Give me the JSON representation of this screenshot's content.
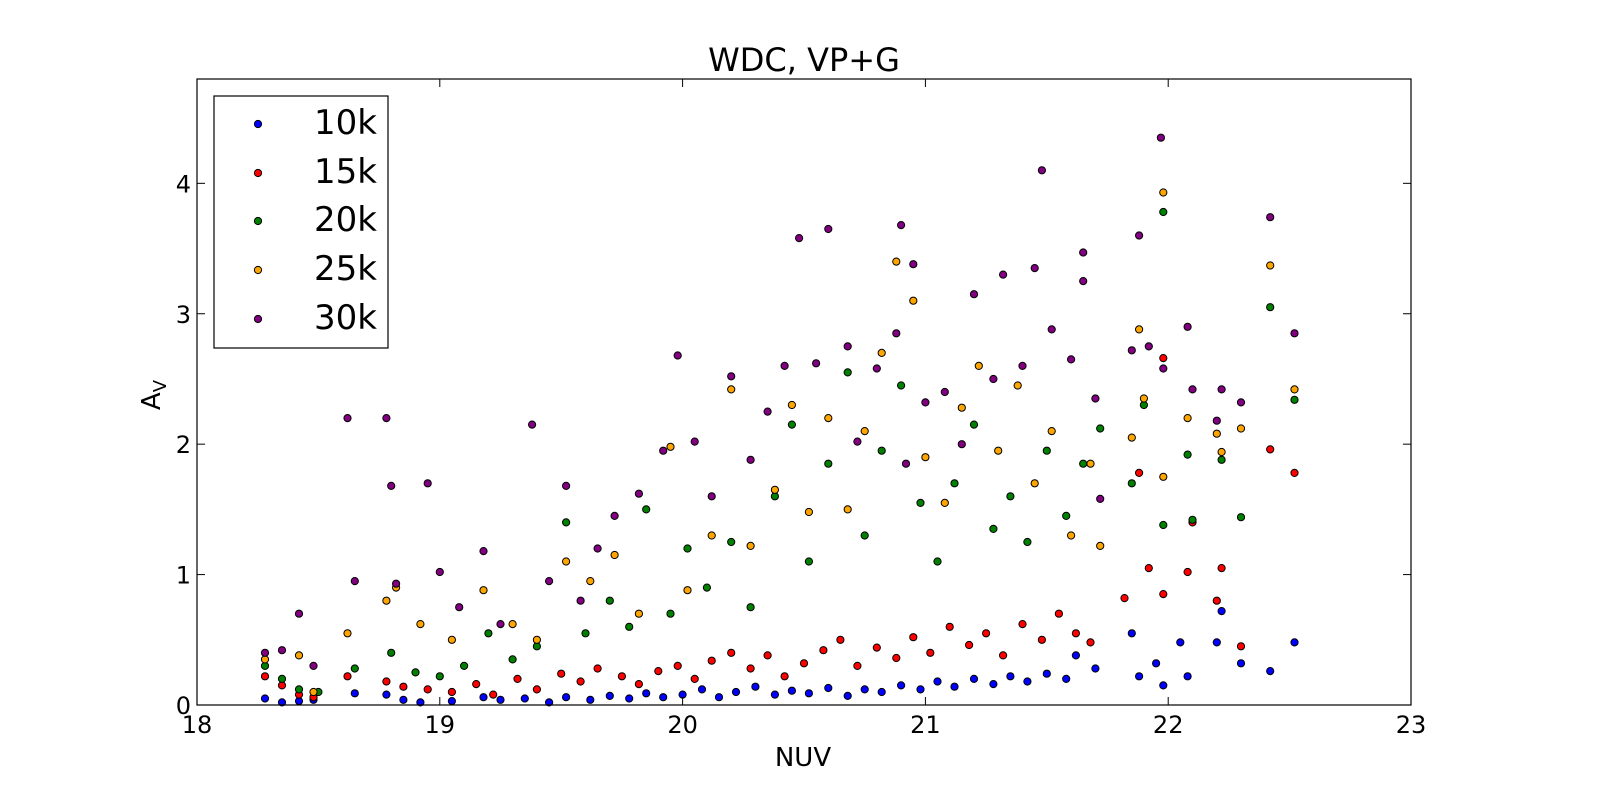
{
  "chart_data": {
    "type": "scatter",
    "title": "WDC, VP+G",
    "xlabel": "NUV",
    "ylabel": "A",
    "ylabel_sub": "V",
    "xlim": [
      18,
      23
    ],
    "ylim": [
      0,
      4.8
    ],
    "xticks": [
      "18",
      "19",
      "20",
      "21",
      "22",
      "23"
    ],
    "yticks": [
      "0",
      "1",
      "2",
      "3",
      "4"
    ],
    "grid": false,
    "legend_position": "top-left",
    "series": [
      {
        "name": "10k",
        "color": "#0000ff",
        "points": [
          [
            18.28,
            0.05
          ],
          [
            18.35,
            0.02
          ],
          [
            18.42,
            0.03
          ],
          [
            18.48,
            0.04
          ],
          [
            18.65,
            0.09
          ],
          [
            18.78,
            0.08
          ],
          [
            18.85,
            0.04
          ],
          [
            18.92,
            0.02
          ],
          [
            19.05,
            0.03
          ],
          [
            19.18,
            0.06
          ],
          [
            19.25,
            0.04
          ],
          [
            19.35,
            0.05
          ],
          [
            19.45,
            0.02
          ],
          [
            19.52,
            0.06
          ],
          [
            19.62,
            0.04
          ],
          [
            19.7,
            0.07
          ],
          [
            19.78,
            0.05
          ],
          [
            19.85,
            0.09
          ],
          [
            19.92,
            0.06
          ],
          [
            20.0,
            0.08
          ],
          [
            20.08,
            0.12
          ],
          [
            20.15,
            0.06
          ],
          [
            20.22,
            0.1
          ],
          [
            20.3,
            0.14
          ],
          [
            20.38,
            0.08
          ],
          [
            20.45,
            0.11
          ],
          [
            20.52,
            0.09
          ],
          [
            20.6,
            0.13
          ],
          [
            20.68,
            0.07
          ],
          [
            20.75,
            0.12
          ],
          [
            20.82,
            0.1
          ],
          [
            20.9,
            0.15
          ],
          [
            20.98,
            0.12
          ],
          [
            21.05,
            0.18
          ],
          [
            21.12,
            0.14
          ],
          [
            21.2,
            0.2
          ],
          [
            21.28,
            0.16
          ],
          [
            21.35,
            0.22
          ],
          [
            21.42,
            0.18
          ],
          [
            21.5,
            0.24
          ],
          [
            21.58,
            0.2
          ],
          [
            21.62,
            0.38
          ],
          [
            21.7,
            0.28
          ],
          [
            21.85,
            0.55
          ],
          [
            21.88,
            0.22
          ],
          [
            21.95,
            0.32
          ],
          [
            21.98,
            0.15
          ],
          [
            22.05,
            0.48
          ],
          [
            22.08,
            0.22
          ],
          [
            22.2,
            0.48
          ],
          [
            22.22,
            0.72
          ],
          [
            22.3,
            0.32
          ],
          [
            22.42,
            0.26
          ],
          [
            22.52,
            0.48
          ]
        ]
      },
      {
        "name": "15k",
        "color": "#ff0000",
        "points": [
          [
            18.28,
            0.22
          ],
          [
            18.35,
            0.15
          ],
          [
            18.42,
            0.08
          ],
          [
            18.48,
            0.06
          ],
          [
            18.62,
            0.22
          ],
          [
            18.78,
            0.18
          ],
          [
            18.85,
            0.14
          ],
          [
            18.95,
            0.12
          ],
          [
            19.05,
            0.1
          ],
          [
            19.15,
            0.16
          ],
          [
            19.22,
            0.08
          ],
          [
            19.32,
            0.2
          ],
          [
            19.4,
            0.12
          ],
          [
            19.5,
            0.24
          ],
          [
            19.58,
            0.18
          ],
          [
            19.65,
            0.28
          ],
          [
            19.75,
            0.22
          ],
          [
            19.82,
            0.16
          ],
          [
            19.9,
            0.26
          ],
          [
            19.98,
            0.3
          ],
          [
            20.05,
            0.2
          ],
          [
            20.12,
            0.34
          ],
          [
            20.2,
            0.4
          ],
          [
            20.28,
            0.28
          ],
          [
            20.35,
            0.38
          ],
          [
            20.42,
            0.22
          ],
          [
            20.5,
            0.32
          ],
          [
            20.58,
            0.42
          ],
          [
            20.65,
            0.5
          ],
          [
            20.72,
            0.3
          ],
          [
            20.8,
            0.44
          ],
          [
            20.88,
            0.36
          ],
          [
            20.95,
            0.52
          ],
          [
            21.02,
            0.4
          ],
          [
            21.1,
            0.6
          ],
          [
            21.18,
            0.46
          ],
          [
            21.25,
            0.55
          ],
          [
            21.32,
            0.38
          ],
          [
            21.4,
            0.62
          ],
          [
            21.48,
            0.5
          ],
          [
            21.55,
            0.7
          ],
          [
            21.62,
            0.55
          ],
          [
            21.68,
            0.48
          ],
          [
            21.82,
            0.82
          ],
          [
            21.88,
            1.78
          ],
          [
            21.92,
            1.05
          ],
          [
            21.98,
            0.85
          ],
          [
            21.98,
            2.66
          ],
          [
            22.08,
            1.02
          ],
          [
            22.1,
            1.4
          ],
          [
            22.2,
            0.8
          ],
          [
            22.22,
            1.05
          ],
          [
            22.3,
            0.45
          ],
          [
            22.42,
            1.96
          ],
          [
            22.52,
            1.78
          ]
        ]
      },
      {
        "name": "20k",
        "color": "#008000",
        "points": [
          [
            18.28,
            0.3
          ],
          [
            18.35,
            0.2
          ],
          [
            18.42,
            0.12
          ],
          [
            18.5,
            0.1
          ],
          [
            18.65,
            0.28
          ],
          [
            18.8,
            0.4
          ],
          [
            18.9,
            0.25
          ],
          [
            19.0,
            0.22
          ],
          [
            19.1,
            0.3
          ],
          [
            19.2,
            0.55
          ],
          [
            19.3,
            0.35
          ],
          [
            19.4,
            0.45
          ],
          [
            19.52,
            1.4
          ],
          [
            19.6,
            0.55
          ],
          [
            19.7,
            0.8
          ],
          [
            19.78,
            0.6
          ],
          [
            19.85,
            1.5
          ],
          [
            19.95,
            0.7
          ],
          [
            20.02,
            1.2
          ],
          [
            20.1,
            0.9
          ],
          [
            20.2,
            1.25
          ],
          [
            20.28,
            0.75
          ],
          [
            20.38,
            1.6
          ],
          [
            20.45,
            2.15
          ],
          [
            20.52,
            1.1
          ],
          [
            20.6,
            1.85
          ],
          [
            20.68,
            2.55
          ],
          [
            20.75,
            1.3
          ],
          [
            20.82,
            1.95
          ],
          [
            20.9,
            2.45
          ],
          [
            20.98,
            1.55
          ],
          [
            21.05,
            1.1
          ],
          [
            21.12,
            1.7
          ],
          [
            21.2,
            2.15
          ],
          [
            21.28,
            1.35
          ],
          [
            21.35,
            1.6
          ],
          [
            21.42,
            1.25
          ],
          [
            21.5,
            1.95
          ],
          [
            21.58,
            1.45
          ],
          [
            21.65,
            1.85
          ],
          [
            21.72,
            2.12
          ],
          [
            21.85,
            1.7
          ],
          [
            21.9,
            2.3
          ],
          [
            21.98,
            3.78
          ],
          [
            21.98,
            1.38
          ],
          [
            22.08,
            1.92
          ],
          [
            22.1,
            1.42
          ],
          [
            22.22,
            1.88
          ],
          [
            22.3,
            1.44
          ],
          [
            22.42,
            3.05
          ],
          [
            22.52,
            2.34
          ]
        ]
      },
      {
        "name": "25k",
        "color": "#ffa500",
        "points": [
          [
            18.28,
            0.35
          ],
          [
            18.42,
            0.38
          ],
          [
            18.48,
            0.1
          ],
          [
            18.62,
            0.55
          ],
          [
            18.78,
            0.8
          ],
          [
            18.82,
            0.9
          ],
          [
            18.92,
            0.62
          ],
          [
            19.05,
            0.5
          ],
          [
            19.18,
            0.88
          ],
          [
            19.3,
            0.62
          ],
          [
            19.4,
            0.5
          ],
          [
            19.52,
            1.1
          ],
          [
            19.62,
            0.95
          ],
          [
            19.72,
            1.15
          ],
          [
            19.82,
            0.7
          ],
          [
            19.95,
            1.98
          ],
          [
            20.02,
            0.88
          ],
          [
            20.12,
            1.3
          ],
          [
            20.2,
            2.42
          ],
          [
            20.28,
            1.22
          ],
          [
            20.38,
            1.65
          ],
          [
            20.45,
            2.3
          ],
          [
            20.52,
            1.48
          ],
          [
            20.6,
            2.2
          ],
          [
            20.68,
            1.5
          ],
          [
            20.75,
            2.1
          ],
          [
            20.82,
            2.7
          ],
          [
            20.88,
            3.4
          ],
          [
            20.95,
            3.1
          ],
          [
            21.0,
            1.9
          ],
          [
            21.08,
            1.55
          ],
          [
            21.15,
            2.28
          ],
          [
            21.22,
            2.6
          ],
          [
            21.3,
            1.95
          ],
          [
            21.38,
            2.45
          ],
          [
            21.45,
            1.7
          ],
          [
            21.52,
            2.1
          ],
          [
            21.6,
            1.3
          ],
          [
            21.68,
            1.85
          ],
          [
            21.72,
            1.22
          ],
          [
            21.85,
            2.05
          ],
          [
            21.88,
            2.88
          ],
          [
            21.9,
            2.35
          ],
          [
            21.98,
            3.93
          ],
          [
            21.98,
            1.75
          ],
          [
            22.08,
            2.2
          ],
          [
            22.2,
            2.08
          ],
          [
            22.22,
            1.94
          ],
          [
            22.3,
            2.12
          ],
          [
            22.42,
            3.37
          ],
          [
            22.52,
            2.42
          ]
        ]
      },
      {
        "name": "30k",
        "color": "#800080",
        "points": [
          [
            18.28,
            0.4
          ],
          [
            18.35,
            0.42
          ],
          [
            18.42,
            0.7
          ],
          [
            18.48,
            0.3
          ],
          [
            18.62,
            2.2
          ],
          [
            18.65,
            0.95
          ],
          [
            18.78,
            2.2
          ],
          [
            18.8,
            1.68
          ],
          [
            18.82,
            0.93
          ],
          [
            18.95,
            1.7
          ],
          [
            19.0,
            1.02
          ],
          [
            19.08,
            0.75
          ],
          [
            19.18,
            1.18
          ],
          [
            19.25,
            0.62
          ],
          [
            19.38,
            2.15
          ],
          [
            19.45,
            0.95
          ],
          [
            19.52,
            1.68
          ],
          [
            19.58,
            0.8
          ],
          [
            19.65,
            1.2
          ],
          [
            19.72,
            1.45
          ],
          [
            19.82,
            1.62
          ],
          [
            19.92,
            1.95
          ],
          [
            19.98,
            2.68
          ],
          [
            20.05,
            2.02
          ],
          [
            20.12,
            1.6
          ],
          [
            20.2,
            2.52
          ],
          [
            20.28,
            1.88
          ],
          [
            20.35,
            2.25
          ],
          [
            20.42,
            2.6
          ],
          [
            20.48,
            3.58
          ],
          [
            20.55,
            2.62
          ],
          [
            20.6,
            3.65
          ],
          [
            20.68,
            2.75
          ],
          [
            20.72,
            2.02
          ],
          [
            20.8,
            2.58
          ],
          [
            20.88,
            2.85
          ],
          [
            20.9,
            3.68
          ],
          [
            20.92,
            1.85
          ],
          [
            20.95,
            3.38
          ],
          [
            21.0,
            2.32
          ],
          [
            21.08,
            2.4
          ],
          [
            21.15,
            2.0
          ],
          [
            21.2,
            3.15
          ],
          [
            21.28,
            2.5
          ],
          [
            21.32,
            3.3
          ],
          [
            21.4,
            2.6
          ],
          [
            21.45,
            3.35
          ],
          [
            21.48,
            4.1
          ],
          [
            21.52,
            2.88
          ],
          [
            21.6,
            2.65
          ],
          [
            21.65,
            3.25
          ],
          [
            21.65,
            3.47
          ],
          [
            21.7,
            2.35
          ],
          [
            21.72,
            1.58
          ],
          [
            21.85,
            2.72
          ],
          [
            21.88,
            3.6
          ],
          [
            21.92,
            2.75
          ],
          [
            21.97,
            4.35
          ],
          [
            21.98,
            2.58
          ],
          [
            22.08,
            2.9
          ],
          [
            22.1,
            2.42
          ],
          [
            22.2,
            2.18
          ],
          [
            22.22,
            2.42
          ],
          [
            22.3,
            2.32
          ],
          [
            22.42,
            3.74
          ],
          [
            22.52,
            2.85
          ]
        ]
      }
    ]
  }
}
